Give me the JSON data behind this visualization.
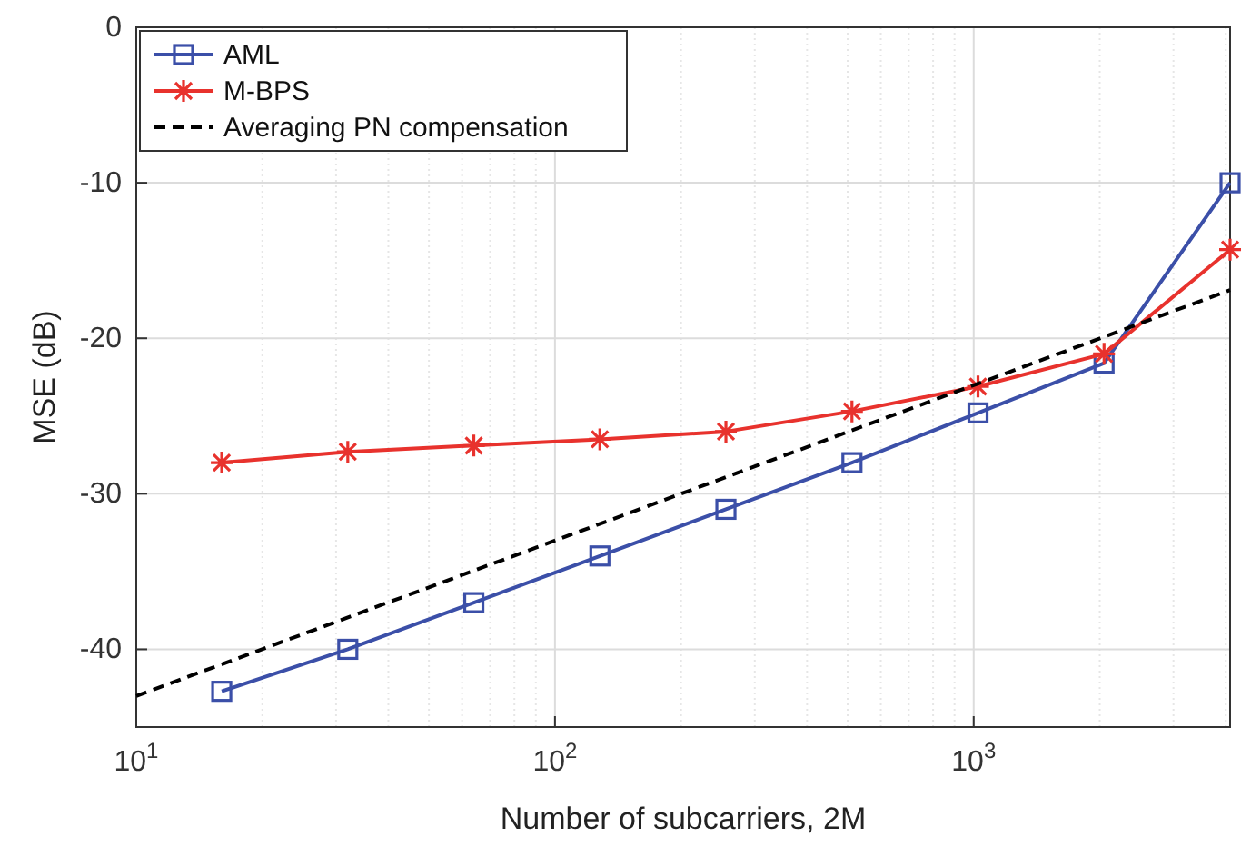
{
  "chart_data": {
    "type": "line",
    "xlabel": "Number of subcarriers, 2M",
    "ylabel": "MSE (dB)",
    "log": "x",
    "xlim": [
      10,
      4096
    ],
    "xticks": [
      {
        "value": 10,
        "label": "10$^{1}$"
      },
      {
        "value": 100,
        "label": "10$^{2}$"
      },
      {
        "value": 1000,
        "label": "10$^{3}$"
      }
    ],
    "ylim": [
      -45,
      0
    ],
    "yticks": [
      -40,
      -30,
      -20,
      -10,
      0
    ],
    "grid": true,
    "legend": "top left",
    "x": [
      16,
      32,
      64,
      128,
      256,
      512,
      1024,
      2048,
      4096
    ],
    "series": [
      {
        "name": "AML",
        "color": "#3b4fa8",
        "marker": "square",
        "line_style": "solid",
        "values": [
          -42.7,
          -40,
          -37,
          -34,
          -31,
          -28,
          -24.8,
          -21.6,
          -10
        ]
      },
      {
        "name": "M-BPS",
        "color": "#e8322d",
        "marker": "cross",
        "line_style": "solid",
        "values": [
          -28,
          -27.3,
          -26.9,
          -26.5,
          -26,
          -24.7,
          -23.1,
          -21,
          -14.3
        ]
      },
      {
        "name": "Averaging PN compensation",
        "color": "#000000",
        "marker": "none",
        "line_style": "dashed",
        "x": [
          10,
          4096
        ],
        "values": [
          -43,
          -16.9
        ]
      }
    ]
  }
}
